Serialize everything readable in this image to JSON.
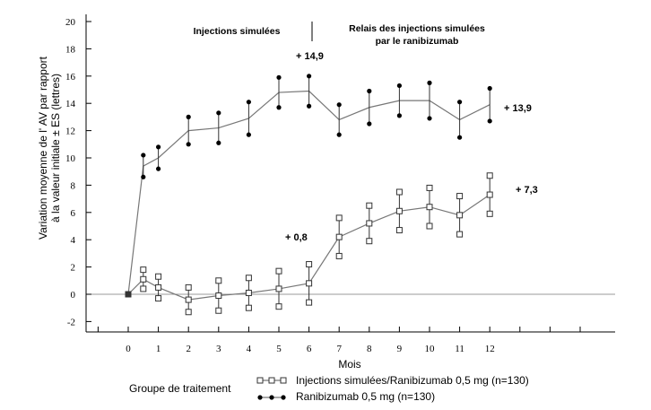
{
  "chart_data": {
    "type": "line",
    "ylabel_line1": "Variation moyenne de l'  AV par rapport",
    "ylabel_line2": "à la valeur initiale ± ES (lettres)",
    "xlabel": "Mois",
    "ylim": [
      -2,
      20
    ],
    "yticks": [
      -2,
      0,
      2,
      4,
      6,
      8,
      10,
      12,
      14,
      16,
      18,
      20
    ],
    "xticks": [
      0,
      1,
      2,
      3,
      4,
      5,
      6,
      7,
      8,
      9,
      10,
      11,
      12
    ],
    "grid": false,
    "phases": {
      "left": "Injections simulées",
      "right_line1": "Relais des injections simulées",
      "right_line2": "par le ranibizumab"
    },
    "annotations": [
      "+ 14,9",
      "+ 13,9",
      "+ 7,3",
      "+ 0,8"
    ],
    "legend_title": "Groupe de traitement",
    "series": [
      {
        "name": "Injections simulées/Ranibizumab 0,5 mg (n=130)",
        "marker": "square",
        "x": [
          0,
          0.5,
          1,
          2,
          3,
          4,
          5,
          6,
          7,
          8,
          9,
          10,
          11,
          12
        ],
        "y": [
          0,
          1.1,
          0.5,
          -0.4,
          -0.1,
          0.1,
          0.4,
          0.8,
          4.2,
          5.2,
          6.1,
          6.4,
          5.8,
          7.3
        ],
        "err": [
          0,
          0.7,
          0.8,
          0.9,
          1.1,
          1.1,
          1.3,
          1.4,
          1.4,
          1.3,
          1.4,
          1.4,
          1.4,
          1.4
        ]
      },
      {
        "name": "Ranibizumab 0,5 mg (n=130)",
        "marker": "circle",
        "x": [
          0,
          0.5,
          1,
          2,
          3,
          4,
          5,
          6,
          7,
          8,
          9,
          10,
          11,
          12
        ],
        "y": [
          0,
          9.4,
          10.0,
          12.0,
          12.2,
          12.9,
          14.8,
          14.9,
          12.8,
          13.7,
          14.2,
          14.2,
          12.8,
          13.9
        ],
        "err": [
          0,
          0.8,
          0.8,
          1.0,
          1.1,
          1.2,
          1.1,
          1.1,
          1.1,
          1.2,
          1.1,
          1.3,
          1.3,
          1.2
        ]
      }
    ]
  }
}
